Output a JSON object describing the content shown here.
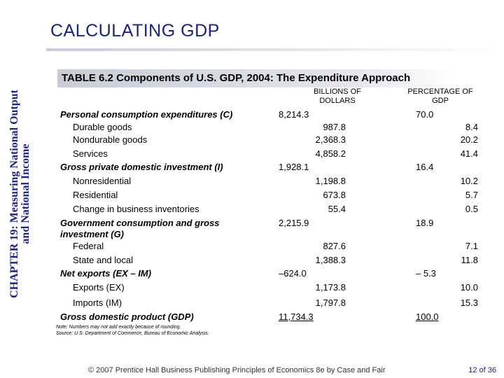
{
  "sidebar": {
    "line1": "CHAPTER 19: Measuring National Output",
    "line2": "and National Income"
  },
  "slide_title": "CALCULATING GDP",
  "table": {
    "title": "TABLE 6.2  Components of U.S. GDP, 2004:  The Expenditure Approach",
    "col_billions": "BILLIONS OF DOLLARS",
    "col_percent": "PERCENTAGE OF GDP",
    "rows": {
      "pce": {
        "label": "Personal consumption expenditures (C)",
        "billions": "8,214.3",
        "percent": "70.0"
      },
      "durable": {
        "label": "Durable goods",
        "billions": "987.8",
        "percent": "8.4"
      },
      "nondurable": {
        "label": "Nondurable goods",
        "billions": "2,368.3",
        "percent": "20.2"
      },
      "services": {
        "label": "Services",
        "billions": "4,858.2",
        "percent": "41.4"
      },
      "gpdi": {
        "label": "Gross private domestic investment (I)",
        "billions": "1,928.1",
        "percent": "16.4"
      },
      "nonres": {
        "label": "Nonresidential",
        "billions": "1,198.8",
        "percent": "10.2"
      },
      "resid": {
        "label": "Residential",
        "billions": "673.8",
        "percent": "5.7"
      },
      "inventory": {
        "label": "Change in business inventories",
        "billions": "55.4",
        "percent": "0.5"
      },
      "gov": {
        "label": "Government consumption and gross",
        "label2": "investment (G)",
        "billions": "2,215.9",
        "percent": "18.9"
      },
      "federal": {
        "label": "Federal",
        "billions": "827.6",
        "percent": "7.1"
      },
      "state": {
        "label": "State and local",
        "billions": "1,388.3",
        "percent": "11.8"
      },
      "netexp": {
        "label": "Net exports (EX – IM)",
        "billions": "–624.0",
        "percent": "– 5.3"
      },
      "exports": {
        "label": "Exports (EX)",
        "billions": "1,173.8",
        "percent": "10.0"
      },
      "imports": {
        "label": "Imports (IM)",
        "billions": "1,797.8",
        "percent": "15.3"
      },
      "gdp": {
        "label": "Gross domestic product (GDP)",
        "billions": "11,734.3",
        "percent": "100.0"
      }
    },
    "note": "Note: Numbers may not add exactly because of rounding.",
    "source": "Source: U.S. Department of Commerce, Bureau of Economic Analysis."
  },
  "footer": "© 2007 Prentice Hall Business Publishing   Principles of Economics 8e by Case and Fair",
  "page": "12 of 36"
}
